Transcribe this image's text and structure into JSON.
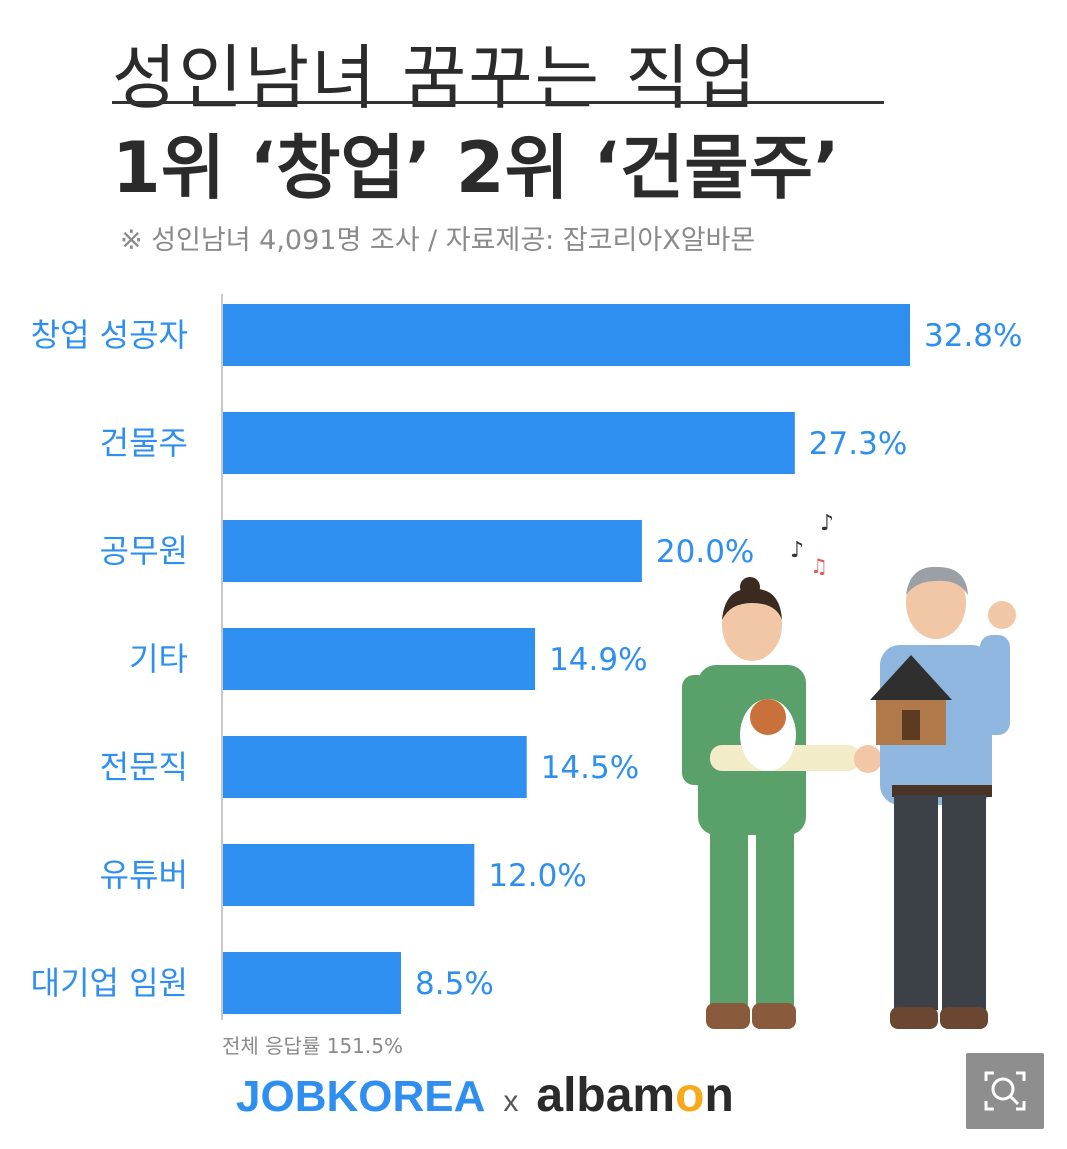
{
  "title_line1": "성인남녀 꿈꾸는 직업",
  "title_line2": "1위 ‘창업’ 2위 ‘건물주’",
  "subtitle": "※ 성인남녀 4,091명 조사 / 자료제공: 잡코리아X알바몬",
  "total_note": "전체 응답률 151.5%",
  "brand": {
    "left": "JOBKOREA",
    "times": "x",
    "right_a": "albam",
    "right_o": "o",
    "right_n": "n"
  },
  "colors": {
    "bar": "#2f8ff0",
    "label": "#2f8ff0",
    "text": "#2b2b2b"
  },
  "zoom_icon": "zoom-search-icon",
  "chart_data": {
    "type": "bar",
    "orientation": "horizontal",
    "categories": [
      "창업 성공자",
      "건물주",
      "공무원",
      "기타",
      "전문직",
      "유튜버",
      "대기업 임원"
    ],
    "values": [
      32.8,
      27.3,
      20.0,
      14.9,
      14.5,
      12.0,
      8.5
    ],
    "value_labels": [
      "32.8%",
      "27.3%",
      "20.0%",
      "14.9%",
      "14.5%",
      "12.0%",
      "8.5%"
    ],
    "title": "성인남녀 꿈꾸는 직업",
    "xlabel": "",
    "ylabel": "",
    "xlim": [
      0,
      32.8
    ],
    "grid": false,
    "legend": "none"
  }
}
